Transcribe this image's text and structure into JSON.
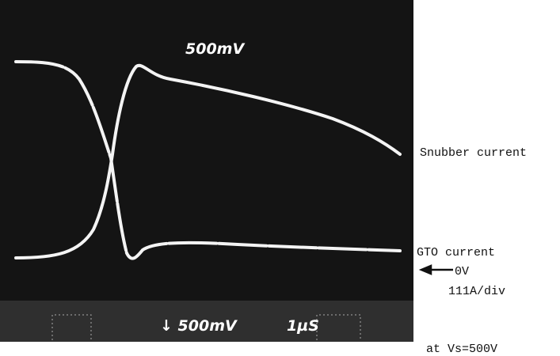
{
  "scope": {
    "top_label": "500mV",
    "bottom_label": "↓ 500mV",
    "time_label": "1µS"
  },
  "annotations": {
    "snubber": "Snubber current",
    "gto": "GTO current",
    "zero": "0V",
    "scale": "111A/div",
    "condition": "at Vs=500V"
  }
}
